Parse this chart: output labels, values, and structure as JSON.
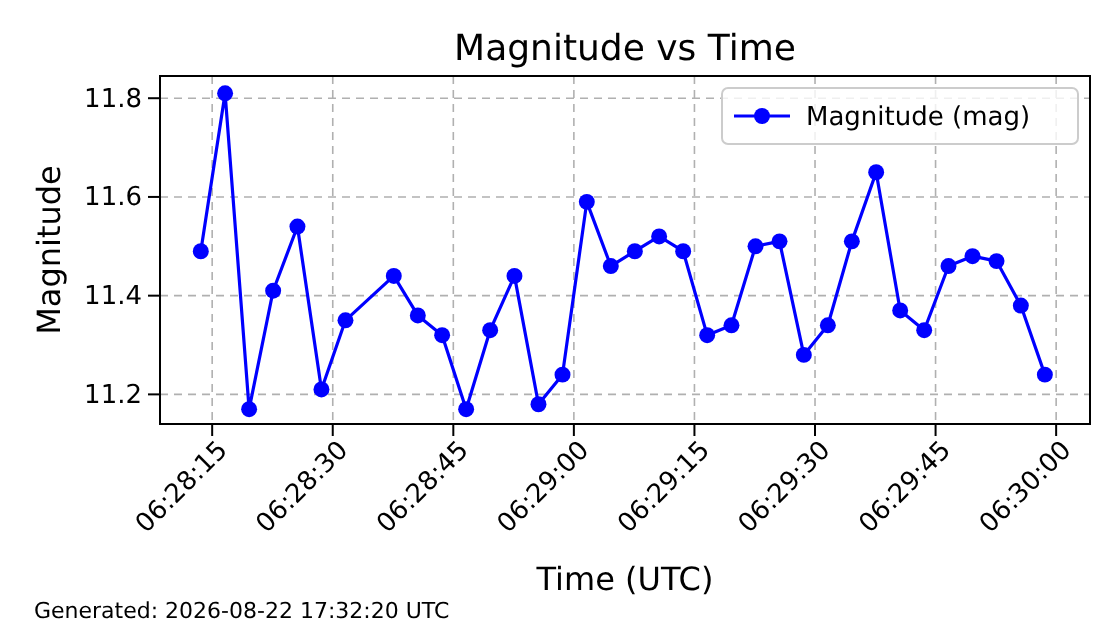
{
  "chart_data": {
    "type": "line",
    "title": "Magnitude vs Time",
    "xlabel": "Time (UTC)",
    "ylabel": "Magnitude",
    "x": [
      6.47044,
      6.47128,
      6.47211,
      6.47294,
      6.47378,
      6.47461,
      6.47544,
      6.47711,
      6.47794,
      6.47878,
      6.47961,
      6.48044,
      6.48128,
      6.48211,
      6.48294,
      6.48378,
      6.48461,
      6.48544,
      6.48628,
      6.48711,
      6.48794,
      6.48878,
      6.48961,
      6.49044,
      6.49128,
      6.49211,
      6.49294,
      6.49378,
      6.49461,
      6.49544,
      6.49628,
      6.49711,
      6.49794,
      6.49878,
      6.49961
    ],
    "series": [
      {
        "name": "Magnitude (mag)",
        "color": "#0000ff",
        "values": [
          11.49,
          11.81,
          11.17,
          11.41,
          11.54,
          11.21,
          11.35,
          11.44,
          11.36,
          11.32,
          11.17,
          11.33,
          11.44,
          11.18,
          11.24,
          11.59,
          11.46,
          11.49,
          11.52,
          11.49,
          11.32,
          11.34,
          11.5,
          11.51,
          11.28,
          11.34,
          11.51,
          11.65,
          11.37,
          11.33,
          11.46,
          11.48,
          11.47,
          11.38,
          11.24
        ]
      }
    ],
    "xlim": [
      6.46903,
      6.50117
    ],
    "xticks": [
      {
        "value": 6.470833,
        "label": "06:28:15"
      },
      {
        "value": 6.475,
        "label": "06:28:30"
      },
      {
        "value": 6.479167,
        "label": "06:28:45"
      },
      {
        "value": 6.483333,
        "label": "06:29:00"
      },
      {
        "value": 6.4875,
        "label": "06:29:15"
      },
      {
        "value": 6.491667,
        "label": "06:29:30"
      },
      {
        "value": 6.495833,
        "label": "06:29:45"
      },
      {
        "value": 6.5,
        "label": "06:30:00"
      }
    ],
    "ylim": [
      11.14,
      11.845
    ],
    "yticks": [
      {
        "value": 11.2,
        "label": "11.2"
      },
      {
        "value": 11.4,
        "label": "11.4"
      },
      {
        "value": 11.6,
        "label": "11.6"
      },
      {
        "value": 11.8,
        "label": "11.8"
      }
    ],
    "grid": true,
    "legend": "top right",
    "marker": "circle",
    "line_style": "solid",
    "annotations": [
      "Generated: 2026-08-22 17:32:20 UTC"
    ]
  }
}
